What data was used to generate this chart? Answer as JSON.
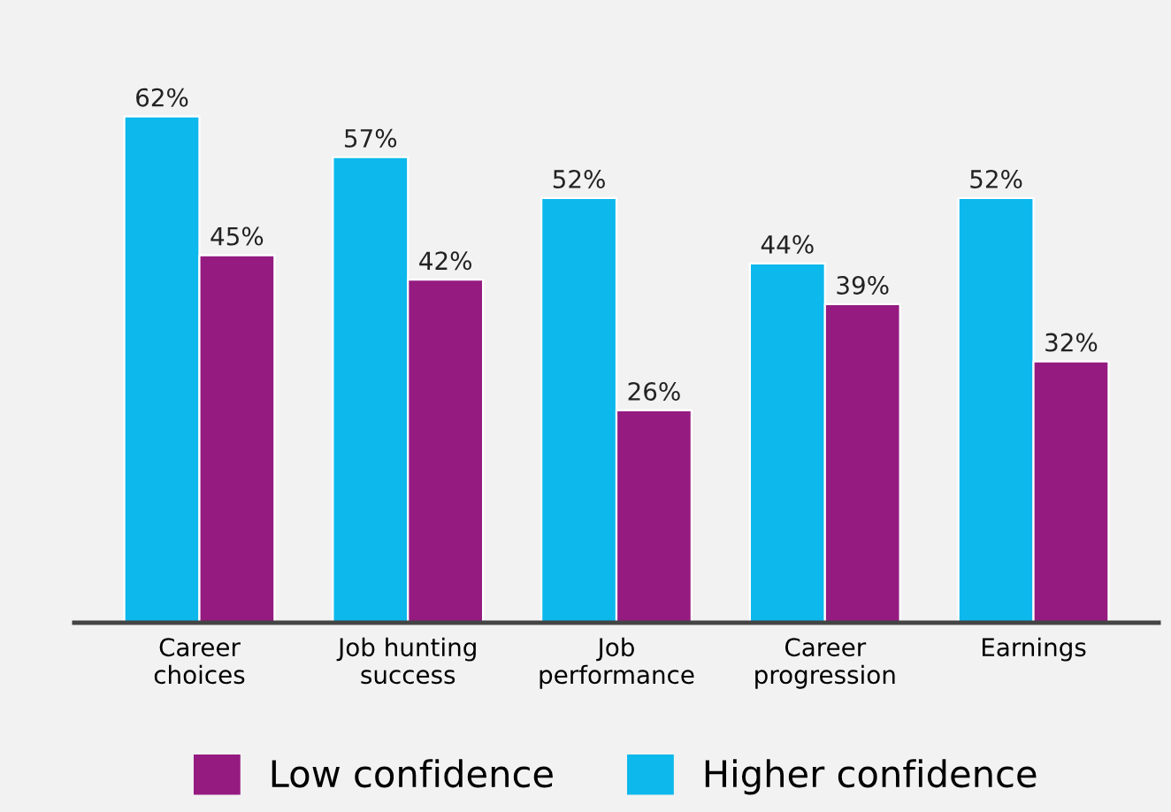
{
  "chart_data": {
    "type": "bar",
    "categories": [
      "Career\nchoices",
      "Job hunting\nsuccess",
      "Job\nperformance",
      "Career\nprogression",
      "Earnings"
    ],
    "series": [
      {
        "name": "Higher confidence",
        "color": "#0cb8ec",
        "values": [
          62,
          57,
          52,
          44,
          52
        ],
        "value_labels": [
          "62%",
          "57%",
          "52%",
          "44%",
          "52%"
        ]
      },
      {
        "name": "Low confidence",
        "color": "#951b81",
        "values": [
          45,
          42,
          26,
          39,
          32
        ],
        "value_labels": [
          "45%",
          "42%",
          "26%",
          "39%",
          "32%"
        ]
      }
    ],
    "grid": false,
    "legend": "bottom"
  }
}
